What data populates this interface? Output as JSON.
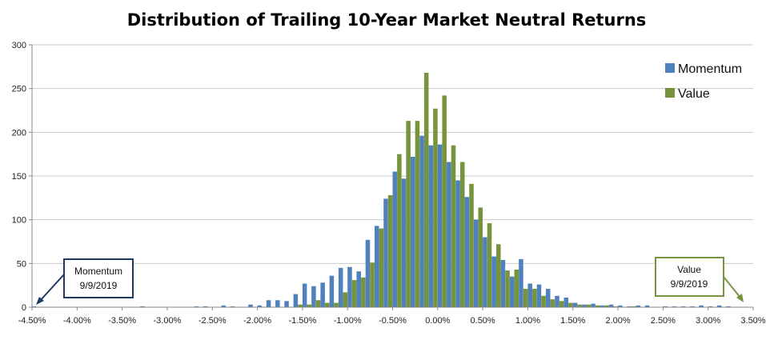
{
  "chart_data": {
    "type": "bar",
    "title": "Distribution of Trailing 10-Year Market Neutral Returns",
    "xlabel": "",
    "ylabel": "",
    "ylim": [
      0,
      300
    ],
    "yticks": [
      "0",
      "50",
      "100",
      "150",
      "200",
      "250",
      "300"
    ],
    "xlim": [
      -4.5,
      3.5
    ],
    "xticks": [
      "-4.50%",
      "-4.00%",
      "-3.50%",
      "-3.00%",
      "-2.50%",
      "-2.00%",
      "-1.50%",
      "-1.00%",
      "-0.50%",
      "0.00%",
      "0.50%",
      "1.00%",
      "1.50%",
      "2.00%",
      "2.50%",
      "3.00%",
      "3.50%"
    ],
    "grid": true,
    "legend_position": "top-right",
    "colors": {
      "Momentum": "#4F81BD",
      "Value": "#77933C",
      "annotation_momentum": "#1F3864",
      "annotation_value": "#77933C"
    },
    "x": [
      -4.45,
      -4.35,
      -4.25,
      -4.15,
      -4.05,
      -3.95,
      -3.85,
      -3.75,
      -3.65,
      -3.55,
      -3.45,
      -3.35,
      -3.25,
      -3.15,
      -3.05,
      -2.95,
      -2.85,
      -2.75,
      -2.65,
      -2.55,
      -2.45,
      -2.35,
      -2.25,
      -2.15,
      -2.05,
      -1.95,
      -1.85,
      -1.75,
      -1.65,
      -1.55,
      -1.45,
      -1.35,
      -1.25,
      -1.15,
      -1.05,
      -0.95,
      -0.85,
      -0.75,
      -0.65,
      -0.55,
      -0.45,
      -0.35,
      -0.25,
      -0.15,
      -0.05,
      0.05,
      0.15,
      0.25,
      0.35,
      0.45,
      0.55,
      0.65,
      0.75,
      0.85,
      0.95,
      1.05,
      1.15,
      1.25,
      1.35,
      1.45,
      1.55,
      1.65,
      1.75,
      1.85,
      1.95,
      2.05,
      2.15,
      2.25,
      2.35,
      2.45,
      2.55,
      2.65,
      2.75,
      2.85,
      2.95,
      3.05,
      3.15,
      3.25,
      3.35
    ],
    "series": [
      {
        "name": "Momentum",
        "values": [
          1,
          0,
          0,
          0,
          0,
          0,
          0,
          0,
          0,
          0,
          0,
          0,
          1,
          0,
          0,
          0,
          0,
          0,
          1,
          1,
          0,
          2,
          1,
          0,
          3,
          2,
          8,
          8,
          7,
          15,
          27,
          24,
          28,
          36,
          45,
          46,
          41,
          77,
          93,
          124,
          155,
          147,
          172,
          196,
          185,
          186,
          166,
          145,
          126,
          100,
          80,
          58,
          54,
          35,
          55,
          27,
          26,
          21,
          13,
          11,
          5,
          3,
          4,
          2,
          3,
          2,
          1,
          2,
          2,
          0,
          1,
          1,
          1,
          1,
          2,
          1,
          2,
          1,
          0
        ]
      },
      {
        "name": "Value",
        "values": [
          0,
          0,
          0,
          0,
          0,
          0,
          0,
          0,
          0,
          0,
          0,
          0,
          0,
          0,
          0,
          0,
          0,
          0,
          0,
          0,
          0,
          0,
          0,
          0,
          0,
          0,
          0,
          0,
          0,
          3,
          3,
          8,
          5,
          5,
          17,
          31,
          34,
          51,
          90,
          128,
          175,
          213,
          213,
          268,
          227,
          242,
          185,
          166,
          141,
          114,
          96,
          72,
          42,
          43,
          21,
          21,
          13,
          9,
          7,
          5,
          3,
          3,
          2,
          2,
          1,
          0,
          1,
          0,
          0,
          0,
          0,
          0,
          0,
          0,
          0,
          0,
          0,
          0,
          0
        ]
      }
    ],
    "annotations": [
      {
        "name": "Momentum",
        "date": "9/9/2019",
        "x": -4.5
      },
      {
        "name": "Value",
        "date": "9/9/2019",
        "x": 3.45
      }
    ]
  }
}
